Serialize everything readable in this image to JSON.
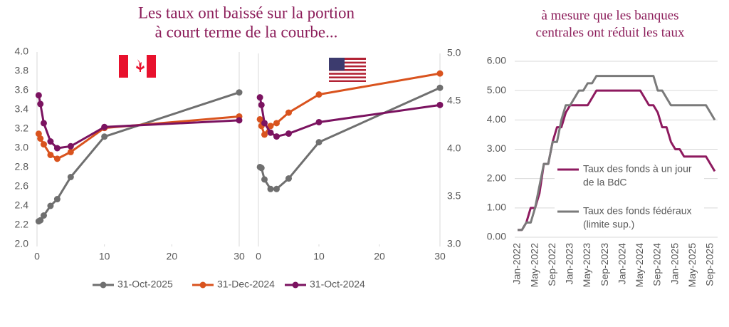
{
  "chart_data": [
    {
      "type": "line",
      "title": [
        "Les taux ont baissé sur la portion",
        "à court terme de la courbe..."
      ],
      "x": [
        0.25,
        0.5,
        1,
        2,
        3,
        5,
        10,
        30
      ],
      "xlim": [
        0,
        30
      ],
      "xticks": [
        0,
        10,
        20,
        30
      ],
      "ylim": [
        2,
        4
      ],
      "yticks": [
        {
          "value": 2,
          "label": "2.0"
        },
        {
          "value": 2.2,
          "label": "2.2"
        },
        {
          "value": 2.4,
          "label": "2.4"
        },
        {
          "value": 2.6,
          "label": "2.6"
        },
        {
          "value": 2.8,
          "label": "2.8"
        },
        {
          "value": 3,
          "label": "3.0"
        },
        {
          "value": 3.2,
          "label": "3.2"
        },
        {
          "value": 3.4,
          "label": "3.4"
        },
        {
          "value": 3.6,
          "label": "3.6"
        },
        {
          "value": 3.8,
          "label": "3.8"
        },
        {
          "value": 4,
          "label": "4.0"
        }
      ],
      "grid": false,
      "markers": true,
      "series": [
        {
          "name": "31-Oct-2025",
          "color": "#6f6f6f",
          "values": [
            2.24,
            2.25,
            2.3,
            2.4,
            2.47,
            2.7,
            3.12,
            3.58
          ]
        },
        {
          "name": "31-Dec-2024",
          "color": "#d9531e",
          "values": [
            3.15,
            3.1,
            3.04,
            2.93,
            2.89,
            2.96,
            3.21,
            3.33
          ]
        },
        {
          "name": "31-Oct-2024",
          "color": "#7b1360",
          "values": [
            3.55,
            3.46,
            3.26,
            3.07,
            3.0,
            3.02,
            3.22,
            3.29
          ]
        }
      ]
    },
    {
      "type": "line",
      "x": [
        0.25,
        0.5,
        1,
        2,
        3,
        5,
        10,
        30
      ],
      "xlim": [
        0,
        30
      ],
      "xticks": [
        0,
        10,
        20,
        30
      ],
      "y2lim": [
        3,
        5
      ],
      "y2ticks": [
        {
          "value": 3,
          "label": "3.0"
        },
        {
          "value": 3.5,
          "label": "3.5"
        },
        {
          "value": 4,
          "label": "4.0"
        },
        {
          "value": 4.5,
          "label": "4.5"
        },
        {
          "value": 5,
          "label": "5.0"
        }
      ],
      "grid": false,
      "markers": true,
      "series": [
        {
          "color": "#6f6f6f",
          "axis": "y2",
          "values": [
            3.81,
            3.8,
            3.68,
            3.58,
            3.58,
            3.69,
            4.07,
            4.64
          ]
        },
        {
          "color": "#d9531e",
          "axis": "y2",
          "values": [
            4.31,
            4.24,
            4.15,
            4.24,
            4.27,
            4.38,
            4.57,
            4.79
          ]
        },
        {
          "color": "#7b1360",
          "axis": "y2",
          "values": [
            4.54,
            4.46,
            4.27,
            4.17,
            4.13,
            4.16,
            4.28,
            4.46
          ]
        }
      ]
    },
    {
      "type": "line",
      "title": [
        "à mesure que les banques",
        "centrales ont réduit les taux"
      ],
      "categories": [
        "Jan-2022",
        null,
        null,
        null,
        "May-2022",
        null,
        null,
        null,
        "Sep-2022",
        null,
        null,
        null,
        "Jan-2023",
        null,
        null,
        null,
        "May-2023",
        null,
        null,
        null,
        "Sep-2023",
        null,
        null,
        null,
        "Jan-2024",
        null,
        null,
        null,
        "May-2024",
        null,
        null,
        null,
        "Sep-2024",
        null,
        null,
        null,
        "Jan-2025",
        null,
        null,
        null,
        "May-2025",
        null,
        null,
        null,
        "Sep-2025",
        null
      ],
      "ylim": [
        0,
        6
      ],
      "yticks": [
        {
          "value": 0,
          "label": "0.00"
        },
        {
          "value": 1,
          "label": "1.00"
        },
        {
          "value": 2,
          "label": "2.00"
        },
        {
          "value": 3,
          "label": "3.00"
        },
        {
          "value": 4,
          "label": "4.00"
        },
        {
          "value": 5,
          "label": "5.00"
        },
        {
          "value": 6,
          "label": "6.00"
        }
      ],
      "grid": true,
      "markers": false,
      "series": [
        {
          "name": [
            "Taux des fonds à un jour",
            "de la BdC"
          ],
          "color": "#8e1a5f",
          "values": [
            0.25,
            0.25,
            0.5,
            1.0,
            1.0,
            1.5,
            2.5,
            2.5,
            3.25,
            3.75,
            3.75,
            4.25,
            4.5,
            4.5,
            4.5,
            4.5,
            4.5,
            4.75,
            5.0,
            5.0,
            5.0,
            5.0,
            5.0,
            5.0,
            5.0,
            5.0,
            5.0,
            5.0,
            5.0,
            4.75,
            4.5,
            4.5,
            4.25,
            3.75,
            3.75,
            3.25,
            3.0,
            3.0,
            2.75,
            2.75,
            2.75,
            2.75,
            2.75,
            2.75,
            2.5,
            2.25
          ]
        },
        {
          "name": [
            "Taux des fonds fédéraux",
            "(limite sup.)"
          ],
          "color": "#7a7a7a",
          "values": [
            0.25,
            0.25,
            0.5,
            0.5,
            1.0,
            1.75,
            2.5,
            2.5,
            3.25,
            3.25,
            4.0,
            4.5,
            4.5,
            4.75,
            5.0,
            5.0,
            5.25,
            5.25,
            5.5,
            5.5,
            5.5,
            5.5,
            5.5,
            5.5,
            5.5,
            5.5,
            5.5,
            5.5,
            5.5,
            5.5,
            5.5,
            5.5,
            5.0,
            5.0,
            4.75,
            4.5,
            4.5,
            4.5,
            4.5,
            4.5,
            4.5,
            4.5,
            4.5,
            4.5,
            4.25,
            4.0
          ]
        }
      ]
    }
  ]
}
